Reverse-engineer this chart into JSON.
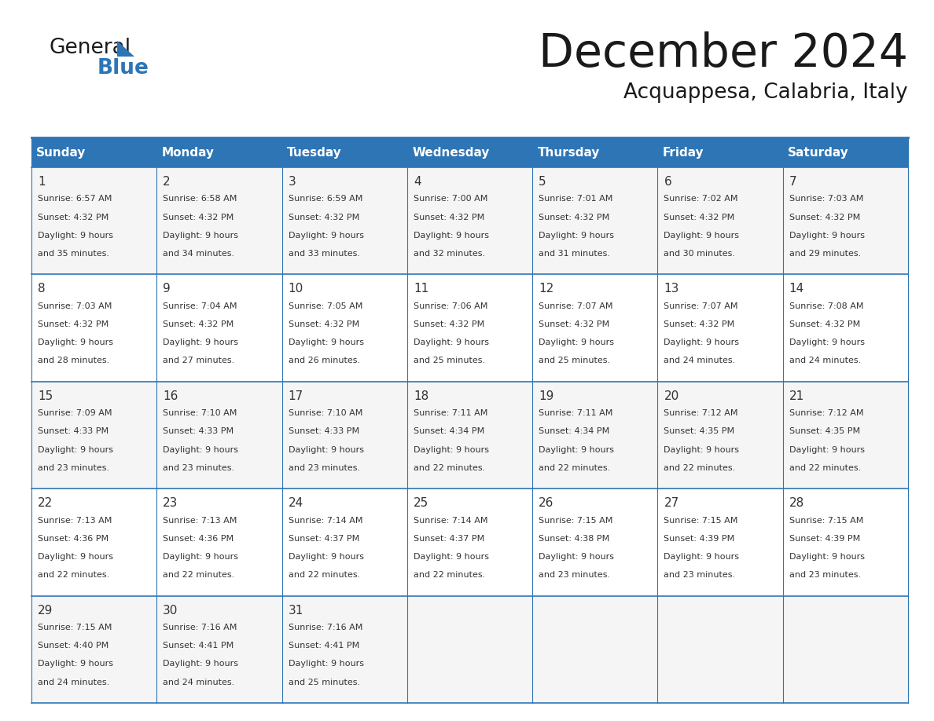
{
  "title": "December 2024",
  "subtitle": "Acquappesa, Calabria, Italy",
  "header_color": "#2E75B6",
  "header_text_color": "#FFFFFF",
  "border_color": "#2E75B6",
  "days_of_week": [
    "Sunday",
    "Monday",
    "Tuesday",
    "Wednesday",
    "Thursday",
    "Friday",
    "Saturday"
  ],
  "calendar_data": [
    [
      {
        "day": 1,
        "sunrise": "6:57 AM",
        "sunset": "4:32 PM",
        "daylight_hours": 9,
        "daylight_minutes": 35
      },
      {
        "day": 2,
        "sunrise": "6:58 AM",
        "sunset": "4:32 PM",
        "daylight_hours": 9,
        "daylight_minutes": 34
      },
      {
        "day": 3,
        "sunrise": "6:59 AM",
        "sunset": "4:32 PM",
        "daylight_hours": 9,
        "daylight_minutes": 33
      },
      {
        "day": 4,
        "sunrise": "7:00 AM",
        "sunset": "4:32 PM",
        "daylight_hours": 9,
        "daylight_minutes": 32
      },
      {
        "day": 5,
        "sunrise": "7:01 AM",
        "sunset": "4:32 PM",
        "daylight_hours": 9,
        "daylight_minutes": 31
      },
      {
        "day": 6,
        "sunrise": "7:02 AM",
        "sunset": "4:32 PM",
        "daylight_hours": 9,
        "daylight_minutes": 30
      },
      {
        "day": 7,
        "sunrise": "7:03 AM",
        "sunset": "4:32 PM",
        "daylight_hours": 9,
        "daylight_minutes": 29
      }
    ],
    [
      {
        "day": 8,
        "sunrise": "7:03 AM",
        "sunset": "4:32 PM",
        "daylight_hours": 9,
        "daylight_minutes": 28
      },
      {
        "day": 9,
        "sunrise": "7:04 AM",
        "sunset": "4:32 PM",
        "daylight_hours": 9,
        "daylight_minutes": 27
      },
      {
        "day": 10,
        "sunrise": "7:05 AM",
        "sunset": "4:32 PM",
        "daylight_hours": 9,
        "daylight_minutes": 26
      },
      {
        "day": 11,
        "sunrise": "7:06 AM",
        "sunset": "4:32 PM",
        "daylight_hours": 9,
        "daylight_minutes": 25
      },
      {
        "day": 12,
        "sunrise": "7:07 AM",
        "sunset": "4:32 PM",
        "daylight_hours": 9,
        "daylight_minutes": 25
      },
      {
        "day": 13,
        "sunrise": "7:07 AM",
        "sunset": "4:32 PM",
        "daylight_hours": 9,
        "daylight_minutes": 24
      },
      {
        "day": 14,
        "sunrise": "7:08 AM",
        "sunset": "4:32 PM",
        "daylight_hours": 9,
        "daylight_minutes": 24
      }
    ],
    [
      {
        "day": 15,
        "sunrise": "7:09 AM",
        "sunset": "4:33 PM",
        "daylight_hours": 9,
        "daylight_minutes": 23
      },
      {
        "day": 16,
        "sunrise": "7:10 AM",
        "sunset": "4:33 PM",
        "daylight_hours": 9,
        "daylight_minutes": 23
      },
      {
        "day": 17,
        "sunrise": "7:10 AM",
        "sunset": "4:33 PM",
        "daylight_hours": 9,
        "daylight_minutes": 23
      },
      {
        "day": 18,
        "sunrise": "7:11 AM",
        "sunset": "4:34 PM",
        "daylight_hours": 9,
        "daylight_minutes": 22
      },
      {
        "day": 19,
        "sunrise": "7:11 AM",
        "sunset": "4:34 PM",
        "daylight_hours": 9,
        "daylight_minutes": 22
      },
      {
        "day": 20,
        "sunrise": "7:12 AM",
        "sunset": "4:35 PM",
        "daylight_hours": 9,
        "daylight_minutes": 22
      },
      {
        "day": 21,
        "sunrise": "7:12 AM",
        "sunset": "4:35 PM",
        "daylight_hours": 9,
        "daylight_minutes": 22
      }
    ],
    [
      {
        "day": 22,
        "sunrise": "7:13 AM",
        "sunset": "4:36 PM",
        "daylight_hours": 9,
        "daylight_minutes": 22
      },
      {
        "day": 23,
        "sunrise": "7:13 AM",
        "sunset": "4:36 PM",
        "daylight_hours": 9,
        "daylight_minutes": 22
      },
      {
        "day": 24,
        "sunrise": "7:14 AM",
        "sunset": "4:37 PM",
        "daylight_hours": 9,
        "daylight_minutes": 22
      },
      {
        "day": 25,
        "sunrise": "7:14 AM",
        "sunset": "4:37 PM",
        "daylight_hours": 9,
        "daylight_minutes": 22
      },
      {
        "day": 26,
        "sunrise": "7:15 AM",
        "sunset": "4:38 PM",
        "daylight_hours": 9,
        "daylight_minutes": 23
      },
      {
        "day": 27,
        "sunrise": "7:15 AM",
        "sunset": "4:39 PM",
        "daylight_hours": 9,
        "daylight_minutes": 23
      },
      {
        "day": 28,
        "sunrise": "7:15 AM",
        "sunset": "4:39 PM",
        "daylight_hours": 9,
        "daylight_minutes": 23
      }
    ],
    [
      {
        "day": 29,
        "sunrise": "7:15 AM",
        "sunset": "4:40 PM",
        "daylight_hours": 9,
        "daylight_minutes": 24
      },
      {
        "day": 30,
        "sunrise": "7:16 AM",
        "sunset": "4:41 PM",
        "daylight_hours": 9,
        "daylight_minutes": 24
      },
      {
        "day": 31,
        "sunrise": "7:16 AM",
        "sunset": "4:41 PM",
        "daylight_hours": 9,
        "daylight_minutes": 25
      },
      null,
      null,
      null,
      null
    ]
  ],
  "logo_general_color": "#1a1a1a",
  "logo_blue_color": "#2E75B6",
  "logo_triangle_color": "#2E75B6"
}
